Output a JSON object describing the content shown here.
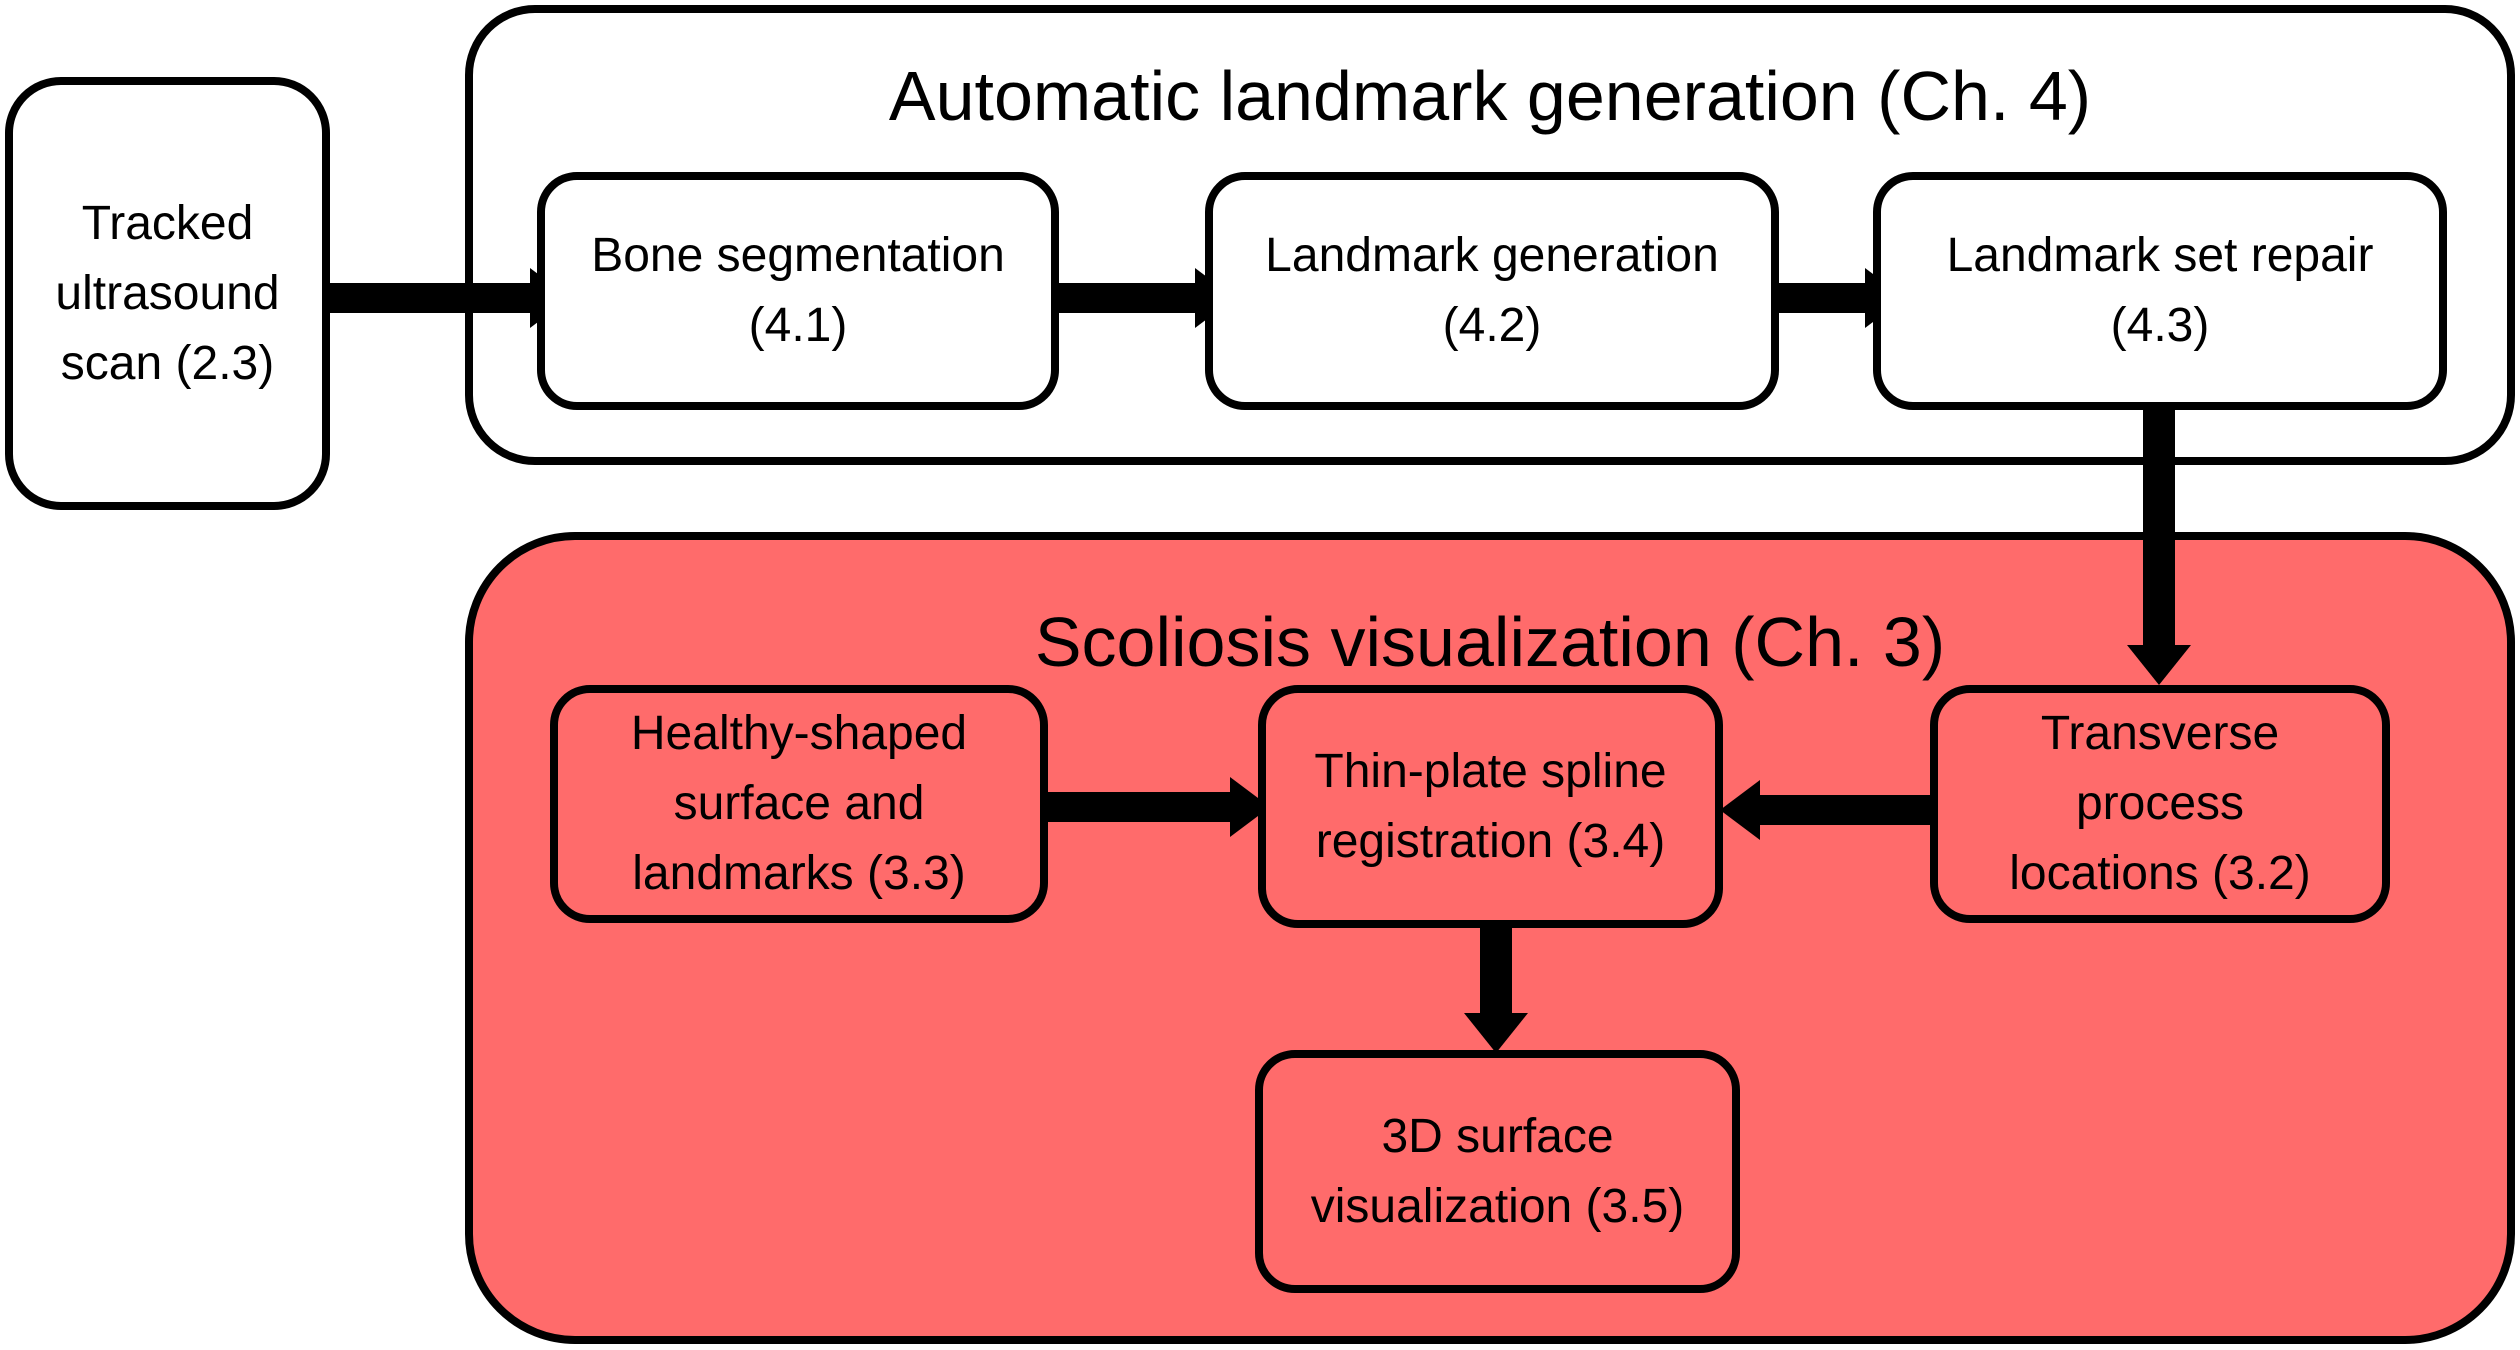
{
  "groups": {
    "landmark": {
      "title": "Automatic landmark generation (Ch. 4)"
    },
    "visualization": {
      "title": "Scoliosis visualization (Ch. 3)",
      "fill": "#ff6b6b"
    }
  },
  "nodes": {
    "tracked_scan": "Tracked\nultrasound\nscan (2.3)",
    "bone_segmentation": "Bone segmentation\n(4.1)",
    "landmark_generation": "Landmark generation\n(4.2)",
    "landmark_repair": "Landmark set repair\n(4.3)",
    "healthy_surface": "Healthy-shaped\nsurface and\nlandmarks (3.3)",
    "tps_registration": "Thin-plate spline\nregistration (3.4)",
    "transverse_process": "Transverse\nprocess\nlocations (3.2)",
    "surface_visualization": "3D surface\nvisualization (3.5)"
  },
  "edges": [
    {
      "from": "tracked_scan",
      "to": "bone_segmentation"
    },
    {
      "from": "bone_segmentation",
      "to": "landmark_generation"
    },
    {
      "from": "landmark_generation",
      "to": "landmark_repair"
    },
    {
      "from": "landmark_repair",
      "to": "transverse_process"
    },
    {
      "from": "healthy_surface",
      "to": "tps_registration"
    },
    {
      "from": "transverse_process",
      "to": "tps_registration"
    },
    {
      "from": "tps_registration",
      "to": "surface_visualization"
    }
  ]
}
